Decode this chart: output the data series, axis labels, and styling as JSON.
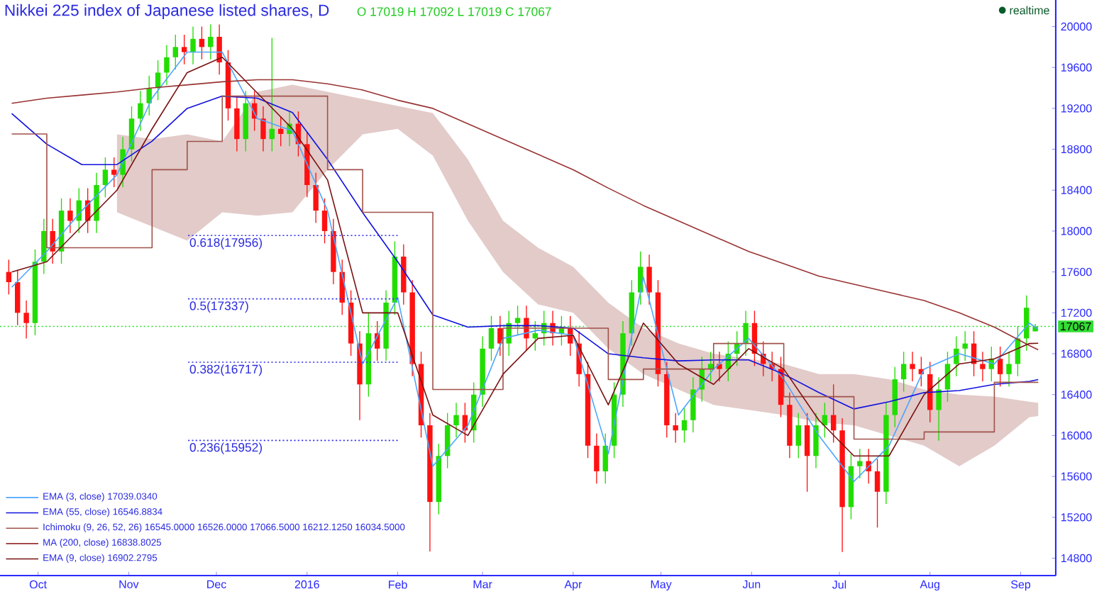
{
  "chart_data": {
    "type": "candlestick",
    "title": "Nikkei 225 index of Japanese listed shares, D",
    "x": [
      "2015-09-21",
      "2015-09-24",
      "2015-09-27",
      "2015-09-30",
      "2015-10-03",
      "2015-10-06",
      "2015-10-09",
      "2015-10-12",
      "2015-10-15",
      "2015-10-18",
      "2015-10-21",
      "2015-10-24",
      "2015-10-27",
      "2015-10-30",
      "2015-11-02",
      "2015-11-05",
      "2015-11-08",
      "2015-11-11",
      "2015-11-14",
      "2015-11-17",
      "2015-11-20",
      "2015-11-23",
      "2015-11-26",
      "2015-11-29",
      "2015-12-02",
      "2015-12-05",
      "2015-12-08",
      "2015-12-11",
      "2015-12-14",
      "2015-12-17",
      "2015-12-20",
      "2015-12-23",
      "2015-12-26",
      "2015-12-29",
      "2016-01-01",
      "2016-01-04",
      "2016-01-07",
      "2016-01-10",
      "2016-01-13",
      "2016-01-16",
      "2016-01-19",
      "2016-01-22",
      "2016-01-25",
      "2016-01-28",
      "2016-01-31",
      "2016-02-03",
      "2016-02-06",
      "2016-02-09",
      "2016-02-12",
      "2016-02-15",
      "2016-02-18",
      "2016-02-21",
      "2016-02-24",
      "2016-02-27",
      "2016-03-01",
      "2016-03-04",
      "2016-03-07",
      "2016-03-10",
      "2016-03-13",
      "2016-03-16",
      "2016-03-19",
      "2016-03-22",
      "2016-03-25",
      "2016-03-28",
      "2016-03-31",
      "2016-04-03",
      "2016-04-06",
      "2016-04-09",
      "2016-04-12",
      "2016-04-15",
      "2016-04-18",
      "2016-04-21",
      "2016-04-24",
      "2016-04-27",
      "2016-04-30",
      "2016-05-03",
      "2016-05-06",
      "2016-05-09",
      "2016-05-12",
      "2016-05-15",
      "2016-05-18",
      "2016-05-21",
      "2016-05-24",
      "2016-05-27",
      "2016-05-30",
      "2016-06-02",
      "2016-06-05",
      "2016-06-08",
      "2016-06-11",
      "2016-06-14",
      "2016-06-17",
      "2016-06-20",
      "2016-06-23",
      "2016-06-26",
      "2016-06-29",
      "2016-07-02",
      "2016-07-05",
      "2016-07-08",
      "2016-07-11",
      "2016-07-14",
      "2016-07-17",
      "2016-07-20",
      "2016-07-23",
      "2016-07-26",
      "2016-07-29",
      "2016-08-01",
      "2016-08-04",
      "2016-08-07",
      "2016-08-10",
      "2016-08-13",
      "2016-08-16",
      "2016-08-19",
      "2016-08-22",
      "2016-08-25",
      "2016-08-28",
      "2016-08-31",
      "2016-09-03",
      "2016-09-06"
    ],
    "ohlc": [
      [
        17600,
        17720,
        17380,
        17500
      ],
      [
        17500,
        17620,
        17080,
        17200
      ],
      [
        17200,
        17320,
        16950,
        17100
      ],
      [
        17100,
        17820,
        16980,
        17700
      ],
      [
        17700,
        18120,
        17580,
        18000
      ],
      [
        18000,
        18120,
        17680,
        17800
      ],
      [
        17800,
        18320,
        17680,
        18200
      ],
      [
        18200,
        18320,
        17980,
        18100
      ],
      [
        18100,
        18420,
        17980,
        18300
      ],
      [
        18300,
        18420,
        17980,
        18100
      ],
      [
        18100,
        18570,
        17980,
        18450
      ],
      [
        18450,
        18720,
        18330,
        18600
      ],
      [
        18600,
        18720,
        18430,
        18550
      ],
      [
        18550,
        18920,
        18430,
        18800
      ],
      [
        18800,
        19220,
        18680,
        19100
      ],
      [
        19100,
        19370,
        18980,
        19250
      ],
      [
        19250,
        19520,
        19130,
        19400
      ],
      [
        19400,
        19670,
        19280,
        19550
      ],
      [
        19550,
        19820,
        19430,
        19700
      ],
      [
        19700,
        19920,
        19580,
        19800
      ],
      [
        19800,
        19920,
        19630,
        19750
      ],
      [
        19750,
        20000,
        19630,
        19880
      ],
      [
        19880,
        20000,
        19680,
        19800
      ],
      [
        19800,
        20020,
        19680,
        19900
      ],
      [
        19900,
        20020,
        19530,
        19650
      ],
      [
        19650,
        19770,
        19080,
        19200
      ],
      [
        19200,
        19320,
        18780,
        18900
      ],
      [
        18900,
        19370,
        18780,
        19250
      ],
      [
        19250,
        19370,
        18980,
        19100
      ],
      [
        19100,
        19220,
        18780,
        18900
      ],
      [
        18900,
        19890,
        18780,
        19000
      ],
      [
        19000,
        19120,
        18830,
        18950
      ],
      [
        18950,
        19170,
        18830,
        19050
      ],
      [
        19050,
        19170,
        18730,
        18850
      ],
      [
        18850,
        18970,
        18330,
        18450
      ],
      [
        18450,
        18570,
        18080,
        18200
      ],
      [
        18200,
        18320,
        17880,
        18000
      ],
      [
        18000,
        18120,
        17480,
        17600
      ],
      [
        17600,
        17720,
        17180,
        17300
      ],
      [
        17300,
        17420,
        16780,
        16900
      ],
      [
        16900,
        17020,
        16150,
        16500
      ],
      [
        16500,
        17200,
        16380,
        17000
      ],
      [
        17000,
        17120,
        16730,
        16850
      ],
      [
        16850,
        17420,
        16730,
        17300
      ],
      [
        17300,
        17900,
        17180,
        17750
      ],
      [
        17750,
        17870,
        17280,
        17400
      ],
      [
        17400,
        17520,
        16580,
        16700
      ],
      [
        16700,
        16820,
        15980,
        16100
      ],
      [
        16100,
        16220,
        14865,
        15350
      ],
      [
        15350,
        15920,
        15230,
        15800
      ],
      [
        15800,
        16220,
        15680,
        16100
      ],
      [
        16100,
        16320,
        15980,
        16200
      ],
      [
        16200,
        16320,
        15930,
        16050
      ],
      [
        16050,
        16520,
        15930,
        16400
      ],
      [
        16400,
        16970,
        16280,
        16850
      ],
      [
        16850,
        17170,
        16730,
        17050
      ],
      [
        17050,
        17170,
        16780,
        16900
      ],
      [
        16900,
        17220,
        16780,
        17100
      ],
      [
        17100,
        17270,
        16980,
        17150
      ],
      [
        17150,
        17270,
        16830,
        16950
      ],
      [
        16950,
        17120,
        16830,
        17000
      ],
      [
        17000,
        17220,
        16880,
        17100
      ],
      [
        17100,
        17220,
        16880,
        17000
      ],
      [
        17000,
        17170,
        16880,
        17050
      ],
      [
        17050,
        17170,
        16780,
        16900
      ],
      [
        16900,
        17020,
        16480,
        16600
      ],
      [
        16600,
        16720,
        15780,
        15900
      ],
      [
        15900,
        16020,
        15530,
        15650
      ],
      [
        15650,
        16020,
        15530,
        15900
      ],
      [
        15900,
        16520,
        15780,
        16400
      ],
      [
        16400,
        17120,
        16280,
        17000
      ],
      [
        17000,
        17520,
        16880,
        17400
      ],
      [
        17400,
        17800,
        17280,
        17650
      ],
      [
        17650,
        17770,
        17280,
        17400
      ],
      [
        17400,
        17520,
        16480,
        16600
      ],
      [
        16600,
        16720,
        15980,
        16100
      ],
      [
        16100,
        16220,
        15930,
        16050
      ],
      [
        16050,
        16270,
        15930,
        16150
      ],
      [
        16150,
        16570,
        16030,
        16450
      ],
      [
        16450,
        16770,
        16330,
        16650
      ],
      [
        16650,
        16820,
        16530,
        16700
      ],
      [
        16700,
        16820,
        16530,
        16650
      ],
      [
        16650,
        16920,
        16530,
        16800
      ],
      [
        16800,
        17020,
        16680,
        16900
      ],
      [
        16900,
        17220,
        16780,
        17100
      ],
      [
        17100,
        17220,
        16680,
        16800
      ],
      [
        16800,
        16920,
        16580,
        16700
      ],
      [
        16700,
        16820,
        16530,
        16650
      ],
      [
        16650,
        16770,
        16180,
        16300
      ],
      [
        16300,
        16420,
        15780,
        15900
      ],
      [
        15900,
        16220,
        15780,
        16100
      ],
      [
        16100,
        16220,
        15450,
        15800
      ],
      [
        15800,
        16220,
        15680,
        16100
      ],
      [
        16100,
        16320,
        15980,
        16200
      ],
      [
        16200,
        16500,
        15930,
        16050
      ],
      [
        16050,
        16170,
        14860,
        15300
      ],
      [
        15300,
        15820,
        15180,
        15700
      ],
      [
        15700,
        15870,
        15580,
        15750
      ],
      [
        15750,
        15870,
        15530,
        15650
      ],
      [
        15650,
        15770,
        15100,
        15450
      ],
      [
        15450,
        16320,
        15330,
        16200
      ],
      [
        16200,
        16670,
        16080,
        16550
      ],
      [
        16550,
        16820,
        16430,
        16700
      ],
      [
        16700,
        16820,
        16530,
        16650
      ],
      [
        16650,
        16770,
        16480,
        16600
      ],
      [
        16600,
        16720,
        16130,
        16250
      ],
      [
        16250,
        16570,
        15950,
        16450
      ],
      [
        16450,
        16820,
        16330,
        16700
      ],
      [
        16700,
        16970,
        16580,
        16850
      ],
      [
        16850,
        17020,
        16730,
        16900
      ],
      [
        16900,
        17020,
        16580,
        16700
      ],
      [
        16700,
        16820,
        16530,
        16650
      ],
      [
        16650,
        16870,
        16530,
        16750
      ],
      [
        16750,
        16870,
        16480,
        16600
      ],
      [
        16600,
        16820,
        16480,
        16700
      ],
      [
        16700,
        17070,
        16580,
        16950
      ],
      [
        16950,
        17370,
        16830,
        17250
      ],
      [
        17019,
        17092,
        17019,
        17067
      ]
    ],
    "series": [
      {
        "name": "EMA (3, close)",
        "type": "line",
        "color": "#4da6ff",
        "x": [
          "2015-09-22",
          "2015-10-04",
          "2015-10-16",
          "2015-10-28",
          "2015-11-09",
          "2015-11-21",
          "2015-12-03",
          "2015-12-15",
          "2015-12-27",
          "2016-01-08",
          "2016-01-20",
          "2016-02-01",
          "2016-02-13",
          "2016-02-25",
          "2016-03-08",
          "2016-03-20",
          "2016-04-01",
          "2016-04-13",
          "2016-04-25",
          "2016-05-07",
          "2016-05-19",
          "2016-05-31",
          "2016-06-12",
          "2016-06-24",
          "2016-07-06",
          "2016-07-18",
          "2016-07-30",
          "2016-08-11",
          "2016-08-23",
          "2016-09-04",
          "2016-09-07"
        ],
        "values": [
          17450,
          17800,
          18200,
          18550,
          19300,
          19750,
          19750,
          19100,
          18980,
          18200,
          16700,
          17350,
          15700,
          16100,
          16950,
          17030,
          16980,
          15820,
          17550,
          16200,
          16650,
          16950,
          16550,
          16000,
          15550,
          15900,
          16650,
          16800,
          16700,
          17100,
          17039
        ]
      },
      {
        "name": "EMA (55, close)",
        "type": "line",
        "color": "#1010e0",
        "x": [
          "2015-09-22",
          "2015-10-04",
          "2015-10-16",
          "2015-10-28",
          "2015-11-09",
          "2015-11-21",
          "2015-12-03",
          "2015-12-15",
          "2015-12-27",
          "2016-01-08",
          "2016-01-20",
          "2016-02-01",
          "2016-02-13",
          "2016-02-25",
          "2016-03-08",
          "2016-03-20",
          "2016-04-01",
          "2016-04-13",
          "2016-04-25",
          "2016-05-07",
          "2016-05-19",
          "2016-05-31",
          "2016-06-12",
          "2016-06-24",
          "2016-07-06",
          "2016-07-18",
          "2016-07-30",
          "2016-08-11",
          "2016-08-23",
          "2016-09-04",
          "2016-09-07"
        ],
        "values": [
          19150,
          18850,
          18650,
          18650,
          18880,
          19200,
          19320,
          19300,
          19160,
          18700,
          18180,
          17700,
          17180,
          17060,
          17075,
          17075,
          17050,
          16800,
          16760,
          16730,
          16740,
          16740,
          16600,
          16420,
          16260,
          16330,
          16420,
          16440,
          16500,
          16530,
          16547
        ]
      },
      {
        "name": "Ichimoku (9, 26, 52, 26)",
        "type": "step",
        "color": "#a0524a",
        "x": [
          "2015-09-22",
          "2015-10-04",
          "2015-10-16",
          "2015-10-28",
          "2015-11-09",
          "2015-11-21",
          "2015-12-03",
          "2015-12-15",
          "2015-12-27",
          "2016-01-08",
          "2016-01-20",
          "2016-02-01",
          "2016-02-13",
          "2016-02-25",
          "2016-03-08",
          "2016-03-20",
          "2016-04-01",
          "2016-04-13",
          "2016-04-25",
          "2016-05-07",
          "2016-05-19",
          "2016-05-31",
          "2016-06-12",
          "2016-06-24",
          "2016-07-06",
          "2016-07-18",
          "2016-07-30",
          "2016-08-11",
          "2016-08-23",
          "2016-09-04",
          "2016-09-07"
        ],
        "values": [
          18950,
          17837,
          17837,
          17837,
          18600,
          18877,
          19320,
          19320,
          19320,
          18600,
          18183,
          18183,
          16450,
          16450,
          17050,
          17050,
          17050,
          16548,
          16650,
          16650,
          16900,
          16900,
          16380,
          16380,
          15965,
          15965,
          16035,
          16035,
          16520,
          16520,
          16520
        ],
        "upper": [
          null,
          null,
          null,
          18946,
          18900,
          18946,
          18877,
          19362,
          19431,
          19362,
          19292,
          19223,
          19154,
          18700,
          18100,
          17837,
          17650,
          17300,
          17050,
          16900,
          16800,
          16750,
          16700,
          16600,
          16600,
          16550,
          16450,
          16400,
          16380,
          16330,
          16320
        ],
        "lower": [
          null,
          null,
          null,
          18183,
          18045,
          17906,
          18183,
          18150,
          18183,
          18599,
          18946,
          19000,
          18738,
          18100,
          17600,
          17282,
          17200,
          16850,
          16600,
          16450,
          16300,
          16250,
          16200,
          16130,
          16100,
          16000,
          15900,
          15700,
          15900,
          16180,
          16190
        ]
      },
      {
        "name": "MA (200, close)",
        "type": "line",
        "color": "#993333",
        "x": [
          "2015-09-22",
          "2015-10-04",
          "2015-10-16",
          "2015-10-28",
          "2015-11-09",
          "2015-11-21",
          "2015-12-03",
          "2015-12-15",
          "2015-12-27",
          "2016-01-08",
          "2016-01-20",
          "2016-02-01",
          "2016-02-13",
          "2016-02-25",
          "2016-03-08",
          "2016-03-20",
          "2016-04-01",
          "2016-04-13",
          "2016-04-25",
          "2016-05-07",
          "2016-05-19",
          "2016-05-31",
          "2016-06-12",
          "2016-06-24",
          "2016-07-06",
          "2016-07-18",
          "2016-07-30",
          "2016-08-11",
          "2016-08-23",
          "2016-09-04",
          "2016-09-07"
        ],
        "values": [
          19250,
          19300,
          19330,
          19360,
          19400,
          19430,
          19460,
          19480,
          19480,
          19440,
          19380,
          19280,
          19200,
          19050,
          18900,
          18750,
          18600,
          18420,
          18250,
          18100,
          17950,
          17800,
          17680,
          17560,
          17480,
          17400,
          17320,
          17200,
          17060,
          16880,
          16839
        ]
      },
      {
        "name": "EMA (9, close)",
        "type": "line",
        "color": "#7a1010",
        "x": [
          "2015-09-22",
          "2015-10-04",
          "2015-10-16",
          "2015-10-28",
          "2015-11-09",
          "2015-11-21",
          "2015-12-03",
          "2015-12-15",
          "2015-12-27",
          "2016-01-08",
          "2016-01-20",
          "2016-02-01",
          "2016-02-13",
          "2016-02-25",
          "2016-03-08",
          "2016-03-20",
          "2016-04-01",
          "2016-04-13",
          "2016-04-25",
          "2016-05-07",
          "2016-05-19",
          "2016-05-31",
          "2016-06-12",
          "2016-06-24",
          "2016-07-06",
          "2016-07-18",
          "2016-07-30",
          "2016-08-11",
          "2016-08-23",
          "2016-09-04",
          "2016-09-07"
        ],
        "values": [
          17600,
          17700,
          18050,
          18400,
          19000,
          19550,
          19700,
          19350,
          19000,
          18500,
          17200,
          17200,
          16200,
          16000,
          16600,
          16950,
          16980,
          16300,
          17100,
          16700,
          16500,
          16850,
          16650,
          16150,
          15800,
          15800,
          16400,
          16700,
          16750,
          16900,
          16902
        ]
      },
      {
        "type": "line",
        "color": "#3333ee",
        "line_style": "dotted",
        "x": [
          "2015-11-21",
          "2016-02-01"
        ],
        "values": [
          17956,
          17956
        ]
      },
      {
        "type": "line",
        "color": "#3333ee",
        "line_style": "dotted",
        "x": [
          "2015-11-21",
          "2016-02-01"
        ],
        "values": [
          17337,
          17337
        ]
      },
      {
        "type": "line",
        "color": "#3333ee",
        "line_style": "dotted",
        "x": [
          "2015-11-21",
          "2016-02-01"
        ],
        "values": [
          16717,
          16717
        ]
      },
      {
        "type": "line",
        "color": "#3333ee",
        "line_style": "dotted",
        "x": [
          "2015-11-21",
          "2016-02-01"
        ],
        "values": [
          15952,
          15952
        ]
      }
    ],
    "xlim": [
      "2015-09-18",
      "2016-09-13"
    ],
    "xticks": [
      {
        "value": "2015-10-01",
        "label": "Oct"
      },
      {
        "value": "2015-11-01",
        "label": "Nov"
      },
      {
        "value": "2015-12-01",
        "label": "Dec"
      },
      {
        "value": "2016-01-01",
        "label": "2016"
      },
      {
        "value": "2016-02-01",
        "label": "Feb"
      },
      {
        "value": "2016-03-01",
        "label": "Mar"
      },
      {
        "value": "2016-04-01",
        "label": "Apr"
      },
      {
        "value": "2016-05-01",
        "label": "May"
      },
      {
        "value": "2016-06-01",
        "label": "Jun"
      },
      {
        "value": "2016-07-01",
        "label": "Jul"
      },
      {
        "value": "2016-08-01",
        "label": "Aug"
      },
      {
        "value": "2016-09-01",
        "label": "Sep"
      }
    ],
    "ylim": [
      14630,
      20260
    ],
    "yticks": [
      14800,
      15200,
      15600,
      16000,
      16400,
      16800,
      17200,
      17600,
      18000,
      18400,
      18800,
      19200,
      19600,
      20000
    ],
    "ref_lines": [
      {
        "axis": "y",
        "value": 17067,
        "label": "17067",
        "color": "#33dd33",
        "line_style": "dotted"
      }
    ],
    "legend": "bottom left",
    "annotations": [
      "O 17019 H 17092 L 17019 C 17067",
      "realtime",
      "17039.0340",
      "16546.8834",
      "16545.0000 16526.0000 17066.5000 16212.1250 16034.5000",
      "16838.8025",
      "16902.2795",
      {
        "text": "0.618(17956)",
        "x": "2015-11-21",
        "y": 17956
      },
      {
        "text": "0.5(17337)",
        "x": "2015-11-21",
        "y": 17337
      },
      {
        "text": "0.382(16717)",
        "x": "2015-11-21",
        "y": 16717
      },
      {
        "text": "0.236(15952)",
        "x": "2015-11-21",
        "y": 15952
      }
    ]
  }
}
